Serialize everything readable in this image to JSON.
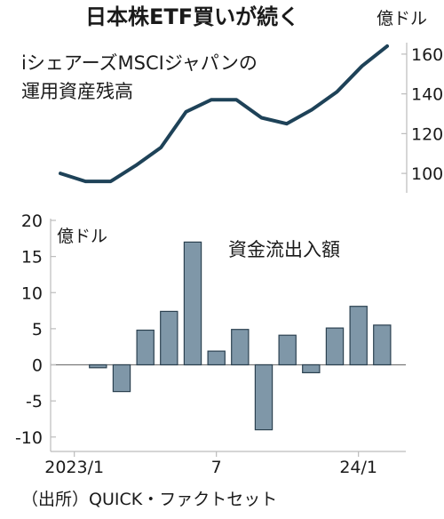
{
  "title": "日本株ETF買いが続く",
  "source": "（出所）QUICK・ファクトセット",
  "chart_data": [
    {
      "type": "line",
      "title_lines": [
        "iシェアーズMSCIジャパンの",
        "運用資産残高"
      ],
      "unit": "億ドル",
      "x": [
        "2023/1",
        "2023/2",
        "2023/3",
        "2023/4",
        "2023/5",
        "2023/6",
        "2023/7",
        "2023/8",
        "2023/9",
        "2023/10",
        "2023/11",
        "2023/12",
        "2024/1",
        "2024/2"
      ],
      "values": [
        100,
        96,
        96,
        104,
        113,
        131,
        137,
        137,
        128,
        125,
        132,
        141,
        154,
        164
      ],
      "ylim": [
        92,
        168
      ],
      "yticks": [
        "100",
        "120",
        "140",
        "160"
      ],
      "color": "#1e4258"
    },
    {
      "type": "bar",
      "title": "資金流出入額",
      "unit": "億ドル",
      "x": [
        "2023/1",
        "2023/2",
        "2023/3",
        "2023/4",
        "2023/5",
        "2023/6",
        "2023/7",
        "2023/8",
        "2023/9",
        "2023/10",
        "2023/11",
        "2023/12",
        "2024/1",
        "2024/2"
      ],
      "values": [
        0,
        -0.4,
        -3.7,
        4.8,
        7.4,
        17.0,
        1.9,
        4.9,
        -9.0,
        4.1,
        -1.1,
        5.1,
        8.1,
        5.5
      ],
      "ylim": [
        -12,
        20
      ],
      "yticks": [
        "20",
        "15",
        "10",
        "5",
        "0",
        "-5",
        "-10"
      ],
      "xticks": [
        "2023/1",
        "7",
        "24/1"
      ],
      "bar_color": "#7f97a8",
      "bar_edge": "#2b4150"
    }
  ]
}
